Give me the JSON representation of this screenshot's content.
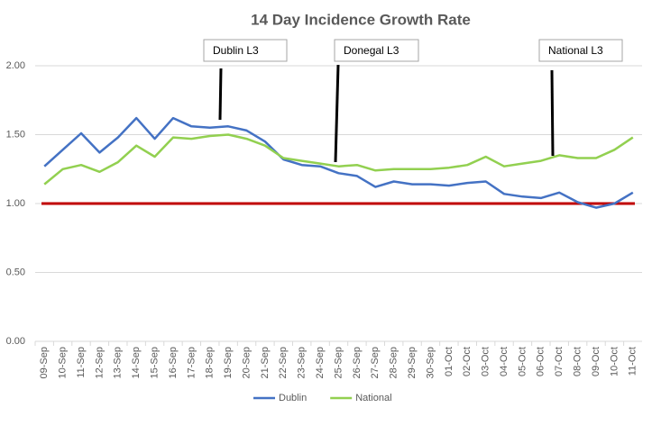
{
  "chart_data": {
    "type": "line",
    "title": "14 Day Incidence Growth Rate",
    "categories": [
      "09-Sep",
      "10-Sep",
      "11-Sep",
      "12-Sep",
      "13-Sep",
      "14-Sep",
      "15-Sep",
      "16-Sep",
      "17-Sep",
      "18-Sep",
      "19-Sep",
      "20-Sep",
      "21-Sep",
      "22-Sep",
      "23-Sep",
      "24-Sep",
      "25-Sep",
      "26-Sep",
      "27-Sep",
      "28-Sep",
      "29-Sep",
      "30-Sep",
      "01-Oct",
      "02-Oct",
      "03-Oct",
      "04-Oct",
      "05-Oct",
      "06-Oct",
      "07-Oct",
      "08-Oct",
      "09-Oct",
      "10-Oct",
      "11-Oct"
    ],
    "series": [
      {
        "name": "Dublin",
        "color": "#4472c4",
        "values": [
          1.27,
          1.39,
          1.51,
          1.37,
          1.48,
          1.62,
          1.47,
          1.62,
          1.56,
          1.55,
          1.56,
          1.53,
          1.45,
          1.32,
          1.28,
          1.27,
          1.22,
          1.2,
          1.12,
          1.16,
          1.14,
          1.14,
          1.13,
          1.15,
          1.16,
          1.07,
          1.05,
          1.04,
          1.08,
          1.01,
          0.97,
          1.0,
          1.08
        ]
      },
      {
        "name": "National",
        "color": "#92d050",
        "values": [
          1.14,
          1.25,
          1.28,
          1.23,
          1.3,
          1.42,
          1.34,
          1.48,
          1.47,
          1.49,
          1.5,
          1.47,
          1.42,
          1.33,
          1.31,
          1.29,
          1.27,
          1.28,
          1.24,
          1.25,
          1.25,
          1.25,
          1.26,
          1.28,
          1.34,
          1.27,
          1.29,
          1.31,
          1.35,
          1.33,
          1.33,
          1.39,
          1.48
        ]
      }
    ],
    "reference_line": {
      "value": 1,
      "color": "#c00000"
    },
    "annotations": [
      "Dublin L3",
      "Donegal L3",
      "National L3"
    ],
    "ylim": [
      0,
      2
    ],
    "yticks": [
      {
        "value": 0,
        "label": "0.00"
      },
      {
        "value": 0.5,
        "label": "0.50"
      },
      {
        "value": 1,
        "label": "1.00"
      },
      {
        "value": 1.5,
        "label": "1.50"
      },
      {
        "value": 2,
        "label": "2.00"
      }
    ],
    "grid": true,
    "legend": "bottom"
  }
}
